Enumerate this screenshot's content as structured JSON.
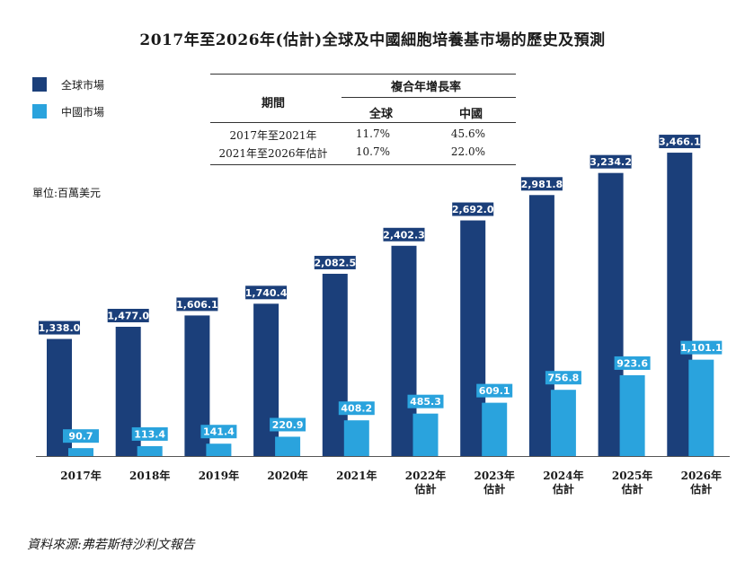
{
  "chart_data": {
    "type": "bar",
    "title": "2017年至2026年(估計)全球及中國細胞培養基市場的歷史及預測",
    "unit_label": "單位:百萬美元",
    "categories": [
      [
        "2017年"
      ],
      [
        "2018年"
      ],
      [
        "2019年"
      ],
      [
        "2020年"
      ],
      [
        "2021年"
      ],
      [
        "2022年",
        "估計"
      ],
      [
        "2023年",
        "估計"
      ],
      [
        "2024年",
        "估計"
      ],
      [
        "2025年",
        "估計"
      ],
      [
        "2026年",
        "估計"
      ]
    ],
    "series": [
      {
        "name": "全球市場",
        "color": "#1b3f7a",
        "values": [
          1338.0,
          1477.0,
          1606.1,
          1740.4,
          2082.5,
          2402.3,
          2692.0,
          2981.8,
          3234.2,
          3466.1
        ],
        "labels": [
          "1,338.0",
          "1,477.0",
          "1,606.1",
          "1,740.4",
          "2,082.5",
          "2,402.3",
          "2,692.0",
          "2,981.8",
          "3,234.2",
          "3,466.1"
        ]
      },
      {
        "name": "中國市場",
        "color": "#2aa3dd",
        "values": [
          90.7,
          113.4,
          141.4,
          220.9,
          408.2,
          485.3,
          609.1,
          756.8,
          923.6,
          1101.1
        ],
        "labels": [
          "90.7",
          "113.4",
          "141.4",
          "220.9",
          "408.2",
          "485.3",
          "609.1",
          "756.8",
          "923.6",
          "1,101.1"
        ]
      }
    ],
    "legend_position": "top-left",
    "grid": false,
    "cagr_table": {
      "header_period": "期間",
      "header_cagr": "複合年增長率",
      "header_global": "全球",
      "header_china": "中國",
      "rows": [
        {
          "period": "2017年至2021年",
          "global": "11.7%",
          "china": "45.6%"
        },
        {
          "period": "2021年至2026年估計",
          "global": "10.7%",
          "china": "22.0%"
        }
      ]
    }
  },
  "source": "資料來源:弗若斯特沙利文報告"
}
